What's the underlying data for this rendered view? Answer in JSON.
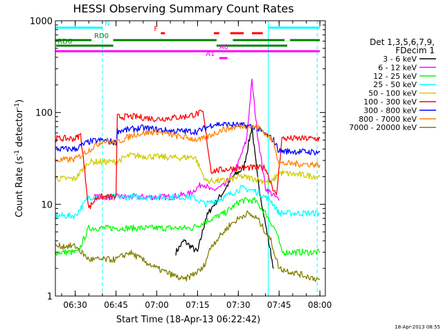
{
  "chart_data": {
    "type": "line",
    "title": "HESSI Observing Summary Count Rates",
    "xlabel": "Start Time (18-Apr-13 06:22:42)",
    "ylabel_main": "Count Rate (s",
    "ylabel_sup1": "-1",
    "ylabel_mid": " detector",
    "ylabel_sup2": "-1",
    "ylabel_end": ")",
    "y_scale": "log",
    "ylim": [
      1,
      1000
    ],
    "xlim": [
      "06:22:42",
      "08:02:00"
    ],
    "x_ticks": [
      "06:30",
      "06:45",
      "07:00",
      "07:15",
      "07:30",
      "07:45",
      "08:00"
    ],
    "y_ticks": [
      "1",
      "10",
      "100",
      "1000"
    ],
    "legend_title_1": "Det 1,3,5,6,7,9,",
    "legend_title_2": "FDecim 1",
    "footer_date": "18-Apr-2013 08:55",
    "flag_labels": [
      "N",
      "F",
      "RD0",
      "RD6",
      "A0",
      "A1"
    ],
    "vertical_markers": [
      {
        "time": "06:40",
        "style": "dashed",
        "color": "#00ffff"
      },
      {
        "time": "07:41",
        "style": "solid",
        "color": "#00ffff"
      },
      {
        "time": "07:59",
        "style": "dashed",
        "color": "#00ffff"
      }
    ],
    "series": [
      {
        "name": "3 - 6 keV",
        "color": "#000000",
        "points": [
          [
            "07:07",
            3
          ],
          [
            "07:10",
            4
          ],
          [
            "07:15",
            3
          ],
          [
            "07:18",
            7
          ],
          [
            "07:20",
            9
          ],
          [
            "07:24",
            13
          ],
          [
            "07:28",
            20
          ],
          [
            "07:32",
            25
          ],
          [
            "07:35",
            70
          ],
          [
            "07:37",
            20
          ],
          [
            "07:40",
            6
          ],
          [
            "07:43",
            2
          ]
        ]
      },
      {
        "name": "6 - 12 keV",
        "color": "#ff00ff",
        "points": [
          [
            "06:37",
            12
          ],
          [
            "06:45",
            12
          ],
          [
            "06:55",
            12
          ],
          [
            "07:05",
            12
          ],
          [
            "07:12",
            13
          ],
          [
            "07:17",
            17
          ],
          [
            "07:20",
            14
          ],
          [
            "07:25",
            16
          ],
          [
            "07:30",
            28
          ],
          [
            "07:33",
            50
          ],
          [
            "07:35",
            220
          ],
          [
            "07:37",
            60
          ],
          [
            "07:40",
            15
          ],
          [
            "07:45",
            11
          ]
        ]
      },
      {
        "name": "12 - 25 keV",
        "color": "#00ff00",
        "points": [
          [
            "06:22:42",
            3
          ],
          [
            "06:31",
            3
          ],
          [
            "06:35",
            5.5
          ],
          [
            "06:45",
            5.5
          ],
          [
            "06:55",
            5.5
          ],
          [
            "07:05",
            5.5
          ],
          [
            "07:13",
            5.5
          ],
          [
            "07:18",
            6.5
          ],
          [
            "07:25",
            8
          ],
          [
            "07:31",
            11
          ],
          [
            "07:36",
            11
          ],
          [
            "07:40",
            8
          ],
          [
            "07:44",
            5
          ],
          [
            "07:46",
            3
          ],
          [
            "08:00",
            3
          ]
        ]
      },
      {
        "name": "25 - 50 keV",
        "color": "#00ffff",
        "points": [
          [
            "06:22:42",
            7.5
          ],
          [
            "06:30",
            7.5
          ],
          [
            "06:35",
            12
          ],
          [
            "06:45",
            12
          ],
          [
            "06:55",
            12
          ],
          [
            "07:05",
            12
          ],
          [
            "07:13",
            12
          ],
          [
            "07:18",
            10
          ],
          [
            "07:25",
            12
          ],
          [
            "07:31",
            15
          ],
          [
            "07:36",
            14
          ],
          [
            "07:42",
            11
          ],
          [
            "07:45",
            8
          ],
          [
            "07:53",
            8
          ],
          [
            "08:00",
            8
          ]
        ]
      },
      {
        "name": "50 - 100 keV",
        "color": "#cccc00",
        "points": [
          [
            "06:22:42",
            19
          ],
          [
            "06:30",
            19
          ],
          [
            "06:35",
            29
          ],
          [
            "06:45",
            29
          ],
          [
            "06:50",
            34
          ],
          [
            "07:00",
            33
          ],
          [
            "07:08",
            32
          ],
          [
            "07:14",
            33
          ],
          [
            "07:18",
            18
          ],
          [
            "07:25",
            18
          ],
          [
            "07:31",
            20
          ],
          [
            "07:36",
            19
          ],
          [
            "07:42",
            17
          ],
          [
            "07:45",
            22
          ],
          [
            "08:00",
            20
          ]
        ]
      },
      {
        "name": "100 - 300 keV",
        "color": "#ff0000",
        "points": [
          [
            "06:22:42",
            52
          ],
          [
            "06:30",
            52
          ],
          [
            "06:32",
            57
          ],
          [
            "06:35",
            9
          ],
          [
            "06:38",
            12
          ],
          [
            "06:45",
            12
          ],
          [
            "06:45:30",
            90
          ],
          [
            "06:52",
            90
          ],
          [
            "07:00",
            85
          ],
          [
            "07:10",
            90
          ],
          [
            "07:17",
            100
          ],
          [
            "07:20",
            23
          ],
          [
            "07:30",
            25
          ],
          [
            "07:40",
            25
          ],
          [
            "07:44",
            12
          ],
          [
            "07:46",
            52
          ],
          [
            "08:00",
            52
          ]
        ]
      },
      {
        "name": "300 - 800 keV",
        "color": "#0000ff",
        "points": [
          [
            "06:22:42",
            40
          ],
          [
            "06:30",
            40
          ],
          [
            "06:35",
            48
          ],
          [
            "06:40",
            50
          ],
          [
            "06:45",
            47
          ],
          [
            "06:45:30",
            63
          ],
          [
            "06:55",
            68
          ],
          [
            "07:05",
            63
          ],
          [
            "07:15",
            62
          ],
          [
            "07:21",
            75
          ],
          [
            "07:30",
            73
          ],
          [
            "07:36",
            70
          ],
          [
            "07:43",
            50
          ],
          [
            "07:45",
            38
          ],
          [
            "08:00",
            37
          ]
        ]
      },
      {
        "name": "800 - 7000 keV",
        "color": "#ff8000",
        "points": [
          [
            "06:22:42",
            30
          ],
          [
            "06:30",
            31
          ],
          [
            "06:40",
            49
          ],
          [
            "06:45",
            47
          ],
          [
            "06:52",
            58
          ],
          [
            "07:00",
            62
          ],
          [
            "07:08",
            55
          ],
          [
            "07:16",
            50
          ],
          [
            "07:24",
            65
          ],
          [
            "07:32",
            72
          ],
          [
            "07:38",
            68
          ],
          [
            "07:43",
            48
          ],
          [
            "07:45",
            28
          ],
          [
            "08:00",
            27
          ]
        ]
      },
      {
        "name": "7000 - 20000 keV",
        "color": "#808000",
        "points": [
          [
            "06:22:42",
            3.5
          ],
          [
            "06:30",
            3.5
          ],
          [
            "06:35",
            2.5
          ],
          [
            "06:45",
            2.5
          ],
          [
            "06:50",
            3
          ],
          [
            "07:00",
            2
          ],
          [
            "07:10",
            1.5
          ],
          [
            "07:17",
            2
          ],
          [
            "07:20",
            3.5
          ],
          [
            "07:27",
            6
          ],
          [
            "07:33",
            8
          ],
          [
            "07:37",
            7
          ],
          [
            "07:42",
            4
          ],
          [
            "07:45",
            2
          ],
          [
            "08:00",
            1.5
          ]
        ]
      }
    ]
  }
}
